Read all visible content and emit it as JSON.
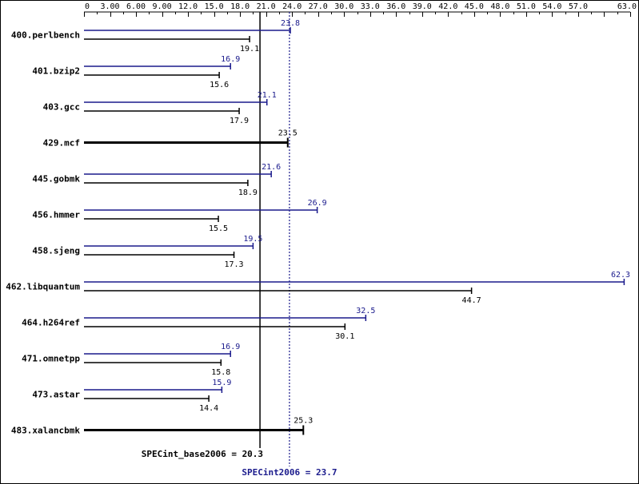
{
  "chart_data": {
    "type": "bar",
    "orientation": "horizontal",
    "xlim": [
      0,
      63
    ],
    "x_ticks": [
      "0",
      "3.00",
      "6.00",
      "9.00",
      "12.0",
      "15.0",
      "18.0",
      "21.0",
      "24.0",
      "27.0",
      "30.0",
      "33.0",
      "36.0",
      "39.0",
      "42.0",
      "45.0",
      "48.0",
      "51.0",
      "54.0",
      "57.0",
      "63.0"
    ],
    "x_tick_values": [
      0,
      3,
      6,
      9,
      12,
      15,
      18,
      21,
      24,
      27,
      30,
      33,
      36,
      39,
      42,
      45,
      48,
      51,
      54,
      57,
      63
    ],
    "categories": [
      "400.perlbench",
      "401.bzip2",
      "403.gcc",
      "429.mcf",
      "445.gobmk",
      "456.hmmer",
      "458.sjeng",
      "462.libquantum",
      "464.h264ref",
      "471.omnetpp",
      "473.astar",
      "483.xalancbmk"
    ],
    "series": [
      {
        "key": "peak",
        "color": "#1a1a8c",
        "values": [
          23.8,
          16.9,
          21.1,
          null,
          21.6,
          26.9,
          19.5,
          62.3,
          32.5,
          16.9,
          15.9,
          null
        ]
      },
      {
        "key": "base",
        "color": "#000000",
        "values": [
          19.1,
          15.6,
          17.9,
          23.5,
          18.9,
          15.5,
          17.3,
          44.7,
          30.1,
          15.8,
          14.4,
          25.3
        ]
      }
    ],
    "peak_labels": [
      "23.8",
      "16.9",
      "21.1",
      "",
      "21.6",
      "26.9",
      "19.5",
      "62.3",
      "32.5",
      "16.9",
      "15.9",
      ""
    ],
    "base_labels": [
      "19.1",
      "15.6",
      "17.9",
      "23.5",
      "18.9",
      "15.5",
      "17.3",
      "44.7",
      "30.1",
      "15.8",
      "14.4",
      "25.3"
    ],
    "summary": {
      "base_label": "SPECint_base2006 = 20.3",
      "base_value": 20.3,
      "peak_label": "SPECint2006 = 23.7",
      "peak_value": 23.7
    },
    "grid": false,
    "legend": "none"
  }
}
